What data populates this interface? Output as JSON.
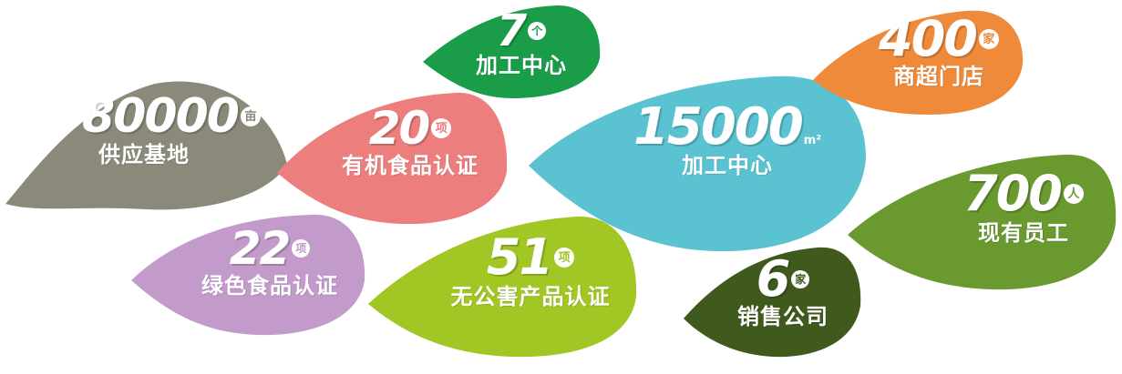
{
  "leaves": [
    {
      "key": "bases",
      "number": "80000",
      "unit": "亩",
      "label": "供应基地",
      "color": "#8b8a7a"
    },
    {
      "key": "centers_count",
      "number": "7",
      "unit": "个",
      "label": "加工中心",
      "color": "#1a9c49"
    },
    {
      "key": "organic",
      "number": "20",
      "unit": "项",
      "label": "有机食品认证",
      "color": "#ec7f7d"
    },
    {
      "key": "processing_area",
      "number": "15000",
      "unit": "m²",
      "label": "加工中心",
      "color": "#5bc2d1"
    },
    {
      "key": "stores",
      "number": "400",
      "unit": "家",
      "label": "商超门店",
      "color": "#ef8a3a"
    },
    {
      "key": "green_food",
      "number": "22",
      "unit": "项",
      "label": "绿色食品认证",
      "color": "#c39bcb"
    },
    {
      "key": "pollution_free",
      "number": "51",
      "unit": "项",
      "label": "无公害产品认证",
      "color": "#a2c624"
    },
    {
      "key": "sales_companies",
      "number": "6",
      "unit": "家",
      "label": "销售公司",
      "color": "#3f5a1c"
    },
    {
      "key": "employees",
      "number": "700",
      "unit": "人",
      "label": "现有员工",
      "color": "#69992f"
    }
  ]
}
